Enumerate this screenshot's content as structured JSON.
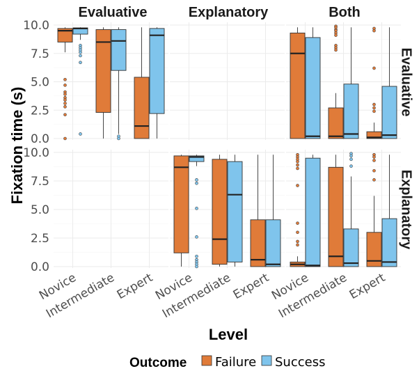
{
  "chart_data": {
    "type": "boxplot",
    "xlabel": "Level",
    "ylabel": "Fixation time (s)",
    "col_facets": [
      "Evaluative",
      "Explanatory",
      "Both"
    ],
    "row_facets": [
      "Evaluative",
      "Explanatory"
    ],
    "categories": [
      "Novice",
      "Intermediate",
      "Expert"
    ],
    "yticks": [
      "0.0",
      "2.5",
      "5.0",
      "7.5",
      "10.0"
    ],
    "ylim": [
      0,
      10
    ],
    "legend": {
      "title": "Outcome",
      "position": "bottom",
      "entries": [
        {
          "name": "Failure",
          "color": "#E07B39"
        },
        {
          "name": "Success",
          "color": "#7FC4EC"
        }
      ]
    },
    "panels": [
      {
        "row": 0,
        "col": 0,
        "boxes": [
          {
            "category": "Novice",
            "outcome": "Failure",
            "min": 7.6,
            "q1": 8.5,
            "median": 9.5,
            "q3": 9.7,
            "max": 9.8,
            "outliers": [
              5.2,
              4.7,
              4.1,
              3.9,
              3.6,
              3.4,
              3.1,
              2.8,
              2.1,
              0.0
            ]
          },
          {
            "category": "Novice",
            "outcome": "Success",
            "min": 8.7,
            "q1": 9.2,
            "median": 9.7,
            "q3": 9.75,
            "max": 9.8,
            "outliers": [
              8.2,
              8.0,
              7.8,
              7.6,
              7.3,
              6.7,
              0.4
            ]
          },
          {
            "category": "Intermediate",
            "outcome": "Failure",
            "min": 0.0,
            "q1": 2.3,
            "median": 8.5,
            "q3": 9.6,
            "max": 9.8,
            "outliers": []
          },
          {
            "category": "Intermediate",
            "outcome": "Success",
            "min": 0.4,
            "q1": 6.0,
            "median": 8.6,
            "q3": 9.6,
            "max": 9.8,
            "outliers": [
              0.2,
              0.0
            ]
          },
          {
            "category": "Expert",
            "outcome": "Failure",
            "min": 0.0,
            "q1": 0.0,
            "median": 1.1,
            "q3": 5.4,
            "max": 9.8,
            "outliers": []
          },
          {
            "category": "Expert",
            "outcome": "Success",
            "min": 0.0,
            "q1": 2.2,
            "median": 9.1,
            "q3": 9.7,
            "max": 9.8,
            "outliers": []
          }
        ]
      },
      {
        "row": 0,
        "col": 1,
        "boxes": []
      },
      {
        "row": 0,
        "col": 2,
        "boxes": [
          {
            "category": "Novice",
            "outcome": "Failure",
            "min": 0.0,
            "q1": 0.0,
            "median": 7.5,
            "q3": 9.3,
            "max": 9.8,
            "outliers": []
          },
          {
            "category": "Novice",
            "outcome": "Success",
            "min": 0.0,
            "q1": 0.0,
            "median": 0.2,
            "q3": 8.9,
            "max": 9.8,
            "outliers": []
          },
          {
            "category": "Intermediate",
            "outcome": "Failure",
            "min": 0.0,
            "q1": 0.0,
            "median": 0.2,
            "q3": 2.7,
            "max": 4.0,
            "outliers": [
              9.9,
              9.8,
              9.6,
              9.5,
              9.3,
              9.1,
              8.2,
              8.0,
              7.8
            ]
          },
          {
            "category": "Intermediate",
            "outcome": "Success",
            "min": 0.0,
            "q1": 0.0,
            "median": 0.4,
            "q3": 4.8,
            "max": 9.8,
            "outliers": []
          },
          {
            "category": "Expert",
            "outcome": "Failure",
            "min": 0.0,
            "q1": 0.0,
            "median": 0.1,
            "q3": 0.6,
            "max": 1.4,
            "outliers": [
              9.7,
              9.5,
              6.2,
              3.0,
              2.7,
              2.4
            ]
          },
          {
            "category": "Expert",
            "outcome": "Success",
            "min": 0.0,
            "q1": 0.0,
            "median": 0.3,
            "q3": 4.6,
            "max": 9.8,
            "outliers": []
          }
        ]
      },
      {
        "row": 1,
        "col": 0,
        "boxes": []
      },
      {
        "row": 1,
        "col": 1,
        "boxes": [
          {
            "category": "Novice",
            "outcome": "Failure",
            "min": 0.0,
            "q1": 1.2,
            "median": 8.7,
            "q3": 9.7,
            "max": 9.8,
            "outliers": []
          },
          {
            "category": "Novice",
            "outcome": "Success",
            "min": 8.8,
            "q1": 9.2,
            "median": 9.6,
            "q3": 9.7,
            "max": 9.8,
            "outliers": [
              7.6,
              7.3,
              5.1,
              2.6,
              0.9,
              0.6,
              0.4,
              0.2,
              0.0
            ]
          },
          {
            "category": "Intermediate",
            "outcome": "Failure",
            "min": 0.0,
            "q1": 0.2,
            "median": 2.4,
            "q3": 9.4,
            "max": 9.8,
            "outliers": []
          },
          {
            "category": "Intermediate",
            "outcome": "Success",
            "min": 0.0,
            "q1": 0.4,
            "median": 6.3,
            "q3": 9.2,
            "max": 9.8,
            "outliers": []
          },
          {
            "category": "Expert",
            "outcome": "Failure",
            "min": 0.0,
            "q1": 0.0,
            "median": 0.6,
            "q3": 4.1,
            "max": 9.8,
            "outliers": []
          },
          {
            "category": "Expert",
            "outcome": "Success",
            "min": 0.0,
            "q1": 0.0,
            "median": 0.2,
            "q3": 4.1,
            "max": 9.8,
            "outliers": []
          }
        ]
      },
      {
        "row": 1,
        "col": 2,
        "boxes": [
          {
            "category": "Novice",
            "outcome": "Failure",
            "min": 0.0,
            "q1": 0.0,
            "median": 0.2,
            "q3": 0.4,
            "max": 0.9,
            "outliers": [
              9.8,
              9.6,
              9.4,
              9.2,
              8.9,
              8.6,
              7.1,
              3.8,
              3.0,
              2.2,
              1.9
            ]
          },
          {
            "category": "Novice",
            "outcome": "Success",
            "min": 0.0,
            "q1": 0.0,
            "median": 0.1,
            "q3": 9.5,
            "max": 9.8,
            "outliers": []
          },
          {
            "category": "Intermediate",
            "outcome": "Failure",
            "min": 0.0,
            "q1": 0.0,
            "median": 0.9,
            "q3": 8.7,
            "max": 9.8,
            "outliers": []
          },
          {
            "category": "Intermediate",
            "outcome": "Success",
            "min": 0.0,
            "q1": 0.0,
            "median": 0.3,
            "q3": 3.3,
            "max": 7.9,
            "outliers": [
              9.9,
              9.7,
              9.4,
              8.8
            ]
          },
          {
            "category": "Expert",
            "outcome": "Failure",
            "min": 0.0,
            "q1": 0.0,
            "median": 0.5,
            "q3": 3.0,
            "max": 6.2,
            "outliers": [
              9.8,
              9.6,
              9.3,
              8.4,
              7.6
            ]
          },
          {
            "category": "Expert",
            "outcome": "Success",
            "min": 0.0,
            "q1": 0.0,
            "median": 0.4,
            "q3": 4.2,
            "max": 9.8,
            "outliers": []
          }
        ]
      }
    ]
  }
}
